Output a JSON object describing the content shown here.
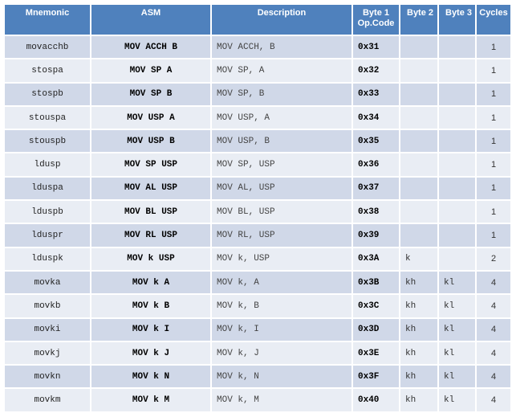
{
  "headers": {
    "mnemonic": "Mnemonic",
    "asm": "ASM",
    "description": "Description",
    "byte1_line1": "Byte 1",
    "byte1_line2": "Op.Code",
    "byte2": "Byte 2",
    "byte3": "Byte 3",
    "cycles": "Cycles"
  },
  "rows": [
    {
      "mnemonic": "movacchb",
      "asm": "MOV ACCH B",
      "description": "MOV ACCH, B",
      "opcode": "0x31",
      "byte2": "",
      "byte3": "",
      "cycles": "1"
    },
    {
      "mnemonic": "stospa",
      "asm": "MOV SP A",
      "description": "MOV SP, A",
      "opcode": "0x32",
      "byte2": "",
      "byte3": "",
      "cycles": "1"
    },
    {
      "mnemonic": "stospb",
      "asm": "MOV SP B",
      "description": "MOV SP, B",
      "opcode": "0x33",
      "byte2": "",
      "byte3": "",
      "cycles": "1"
    },
    {
      "mnemonic": "stouspa",
      "asm": "MOV USP A",
      "description": "MOV USP, A",
      "opcode": "0x34",
      "byte2": "",
      "byte3": "",
      "cycles": "1"
    },
    {
      "mnemonic": "stouspb",
      "asm": "MOV USP B",
      "description": "MOV USP, B",
      "opcode": "0x35",
      "byte2": "",
      "byte3": "",
      "cycles": "1"
    },
    {
      "mnemonic": "ldusp",
      "asm": "MOV SP USP",
      "description": "MOV SP, USP",
      "opcode": "0x36",
      "byte2": "",
      "byte3": "",
      "cycles": "1"
    },
    {
      "mnemonic": "lduspa",
      "asm": "MOV AL USP",
      "description": "MOV AL, USP",
      "opcode": "0x37",
      "byte2": "",
      "byte3": "",
      "cycles": "1"
    },
    {
      "mnemonic": "lduspb",
      "asm": "MOV BL USP",
      "description": "MOV BL, USP",
      "opcode": "0x38",
      "byte2": "",
      "byte3": "",
      "cycles": "1"
    },
    {
      "mnemonic": "lduspr",
      "asm": "MOV RL USP",
      "description": "MOV RL, USP",
      "opcode": "0x39",
      "byte2": "",
      "byte3": "",
      "cycles": "1"
    },
    {
      "mnemonic": "lduspk",
      "asm": "MOV k USP",
      "description": "MOV k, USP",
      "opcode": "0x3A",
      "byte2": "k",
      "byte3": "",
      "cycles": "2"
    },
    {
      "mnemonic": "movka",
      "asm": "MOV k A",
      "description": "MOV k, A",
      "opcode": "0x3B",
      "byte2": "kh",
      "byte3": "kl",
      "cycles": "4"
    },
    {
      "mnemonic": "movkb",
      "asm": "MOV k B",
      "description": "MOV k, B",
      "opcode": "0x3C",
      "byte2": "kh",
      "byte3": "kl",
      "cycles": "4"
    },
    {
      "mnemonic": "movki",
      "asm": "MOV k I",
      "description": "MOV k, I",
      "opcode": "0x3D",
      "byte2": "kh",
      "byte3": "kl",
      "cycles": "4"
    },
    {
      "mnemonic": "movkj",
      "asm": "MOV k J",
      "description": "MOV k, J",
      "opcode": "0x3E",
      "byte2": "kh",
      "byte3": "kl",
      "cycles": "4"
    },
    {
      "mnemonic": "movkn",
      "asm": "MOV k N",
      "description": "MOV k, N",
      "opcode": "0x3F",
      "byte2": "kh",
      "byte3": "kl",
      "cycles": "4"
    },
    {
      "mnemonic": "movkm",
      "asm": "MOV k M",
      "description": "MOV k, M",
      "opcode": "0x40",
      "byte2": "kh",
      "byte3": "kl",
      "cycles": "4"
    }
  ],
  "colors": {
    "header_bg": "#4f81bd",
    "row_odd": "#d0d8e8",
    "row_even": "#e9edf4"
  }
}
